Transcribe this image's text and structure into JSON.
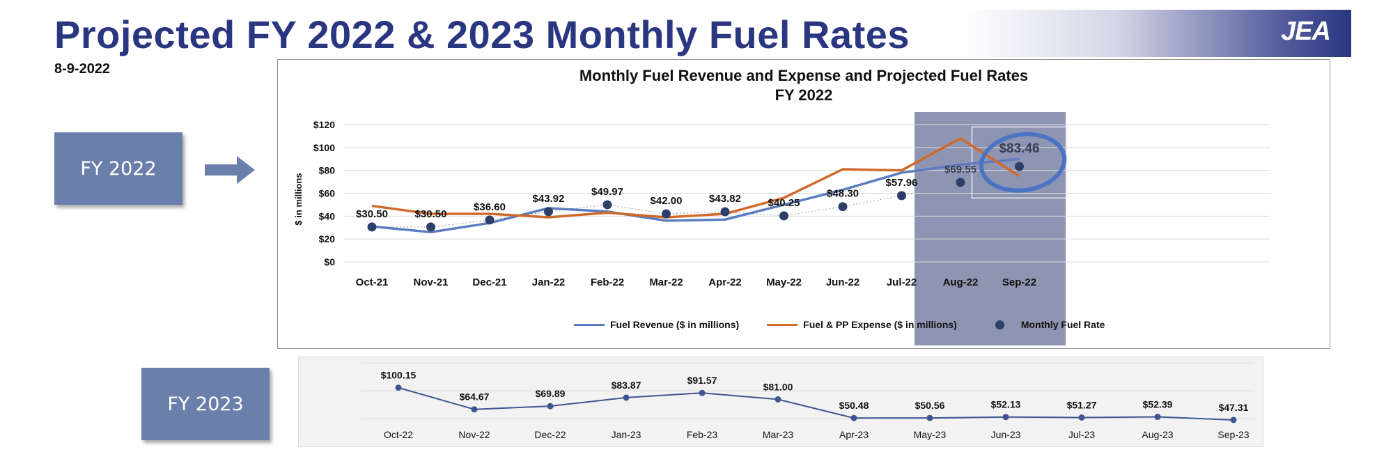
{
  "header": {
    "title": "Projected FY 2022 & 2023 Monthly Fuel Rates",
    "date": "8-9-2022",
    "logo_text": "JEA"
  },
  "labels": {
    "fy2022": "FY 2022",
    "fy2023": "FY 2023"
  },
  "colors": {
    "title": "#2a3680",
    "fuel_revenue": "#5b7cbe",
    "fuel_expense": "#d0692a",
    "fuel_rate_marker": "#2d3e6b",
    "projected_shade": "#8e95b3",
    "highlight_circle": "#4a73c4",
    "fy2023_line": "#3f5593",
    "year_box": "#6a80ab"
  },
  "chart_data": [
    {
      "type": "line",
      "title": "Monthly Fuel Revenue and Expense and Projected Fuel Rates",
      "subtitle": "FY 2022",
      "ylabel": "$ in millions",
      "ylim": [
        0,
        120
      ],
      "yticks": [
        0,
        20,
        40,
        60,
        80,
        100,
        120
      ],
      "ytick_labels": [
        "$0",
        "$20",
        "$40",
        "$60",
        "$80",
        "$100",
        "$120"
      ],
      "grid": true,
      "legend_position": "bottom",
      "categories": [
        "Oct-21",
        "Nov-21",
        "Dec-21",
        "Jan-22",
        "Feb-22",
        "Mar-22",
        "Apr-22",
        "May-22",
        "Jun-22",
        "Jul-22",
        "Aug-22",
        "Sep-22"
      ],
      "projected_categories": [
        "Aug-22",
        "Sep-22"
      ],
      "highlighted_category": "Sep-22",
      "series": [
        {
          "name": "Fuel Revenue ($ in millions)",
          "type": "line",
          "values": [
            31,
            26,
            34,
            47,
            44,
            36,
            37,
            50,
            63,
            78,
            85,
            90
          ]
        },
        {
          "name": "Fuel & PP Expense ($ in millions)",
          "type": "line",
          "values": [
            49,
            42,
            42,
            39,
            43,
            39,
            42,
            56,
            81,
            80,
            108,
            75
          ]
        },
        {
          "name": "Monthly Fuel Rate",
          "type": "scatter",
          "values": [
            30.5,
            30.5,
            36.6,
            43.92,
            49.97,
            42.0,
            43.82,
            40.25,
            48.3,
            57.96,
            69.55,
            83.46
          ],
          "labels": [
            "$30.50",
            "$30.50",
            "$36.60",
            "$43.92",
            "$49.97",
            "$42.00",
            "$43.82",
            "$40.25",
            "$48.30",
            "$57.96",
            "$69.55",
            "$83.46"
          ]
        }
      ]
    },
    {
      "type": "line",
      "title": "",
      "categories": [
        "Oct-22",
        "Nov-22",
        "Dec-22",
        "Jan-23",
        "Feb-23",
        "Mar-23",
        "Apr-23",
        "May-23",
        "Jun-23",
        "Jul-23",
        "Aug-23",
        "Sep-23"
      ],
      "series": [
        {
          "name": "",
          "values": [
            100.15,
            64.67,
            69.89,
            83.87,
            91.57,
            81.0,
            50.48,
            50.56,
            52.13,
            51.27,
            52.39,
            47.31
          ],
          "labels": [
            "$100.15",
            "$64.67",
            "$69.89",
            "$83.87",
            "$91.57",
            "$81.00",
            "$50.48",
            "$50.56",
            "$52.13",
            "$51.27",
            "$52.39",
            "$47.31"
          ]
        }
      ],
      "ylim": [
        45,
        102
      ]
    }
  ]
}
